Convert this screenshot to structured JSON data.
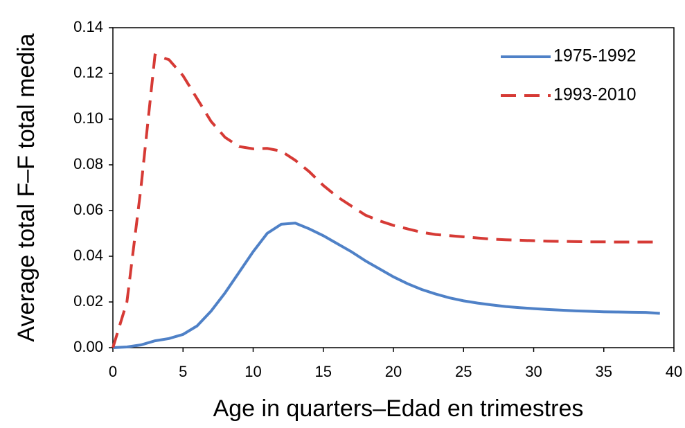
{
  "chart_data": {
    "type": "line",
    "xlabel": "Age in quarters–Edad en trimestres",
    "ylabel": "Average total F–F total media",
    "x": [
      0,
      1,
      2,
      3,
      4,
      5,
      6,
      7,
      8,
      9,
      10,
      11,
      12,
      13,
      14,
      15,
      16,
      17,
      18,
      19,
      20,
      21,
      22,
      23,
      24,
      25,
      26,
      27,
      28,
      29,
      30,
      31,
      32,
      33,
      34,
      35,
      36,
      37,
      38,
      39
    ],
    "series": [
      {
        "name": "1975-1992",
        "color": "#4f81c7",
        "dash": "solid",
        "values": [
          0,
          0.0003,
          0.0012,
          0.003,
          0.004,
          0.0058,
          0.0095,
          0.016,
          0.024,
          0.033,
          0.042,
          0.05,
          0.054,
          0.0545,
          0.052,
          0.049,
          0.0455,
          0.042,
          0.038,
          0.0345,
          0.031,
          0.028,
          0.0255,
          0.0235,
          0.0218,
          0.0205,
          0.0195,
          0.0187,
          0.018,
          0.0175,
          0.0171,
          0.0167,
          0.0164,
          0.0161,
          0.0159,
          0.0157,
          0.0156,
          0.0155,
          0.0154,
          0.015
        ]
      },
      {
        "name": "1993-2010",
        "color": "#d63a35",
        "dash": "dashed",
        "values": [
          0,
          0.02,
          0.07,
          0.128,
          0.126,
          0.119,
          0.109,
          0.099,
          0.092,
          0.088,
          0.087,
          0.0872,
          0.086,
          0.082,
          0.077,
          0.071,
          0.066,
          0.062,
          0.058,
          0.0555,
          0.0535,
          0.052,
          0.0505,
          0.0495,
          0.049,
          0.0485,
          0.048,
          0.0475,
          0.0472,
          0.047,
          0.0468,
          0.0466,
          0.0465,
          0.0464,
          0.0463,
          0.0463,
          0.0462,
          0.0462,
          0.0462,
          0.0462
        ]
      }
    ],
    "xlim": [
      0,
      40
    ],
    "xticks": [
      0,
      5,
      10,
      15,
      20,
      25,
      30,
      35,
      40
    ],
    "ylim": [
      0,
      0.14
    ],
    "yticks": [
      {
        "value": 0,
        "label": "0.00"
      },
      {
        "value": 0.02,
        "label": "0.02"
      },
      {
        "value": 0.04,
        "label": "0.04"
      },
      {
        "value": 0.06,
        "label": "0.06"
      },
      {
        "value": 0.08,
        "label": "0.08"
      },
      {
        "value": 0.1,
        "label": "0.10"
      },
      {
        "value": 0.12,
        "label": "0.12"
      },
      {
        "value": 0.14,
        "label": "0.14"
      }
    ],
    "grid": false,
    "legend": "upper right"
  }
}
